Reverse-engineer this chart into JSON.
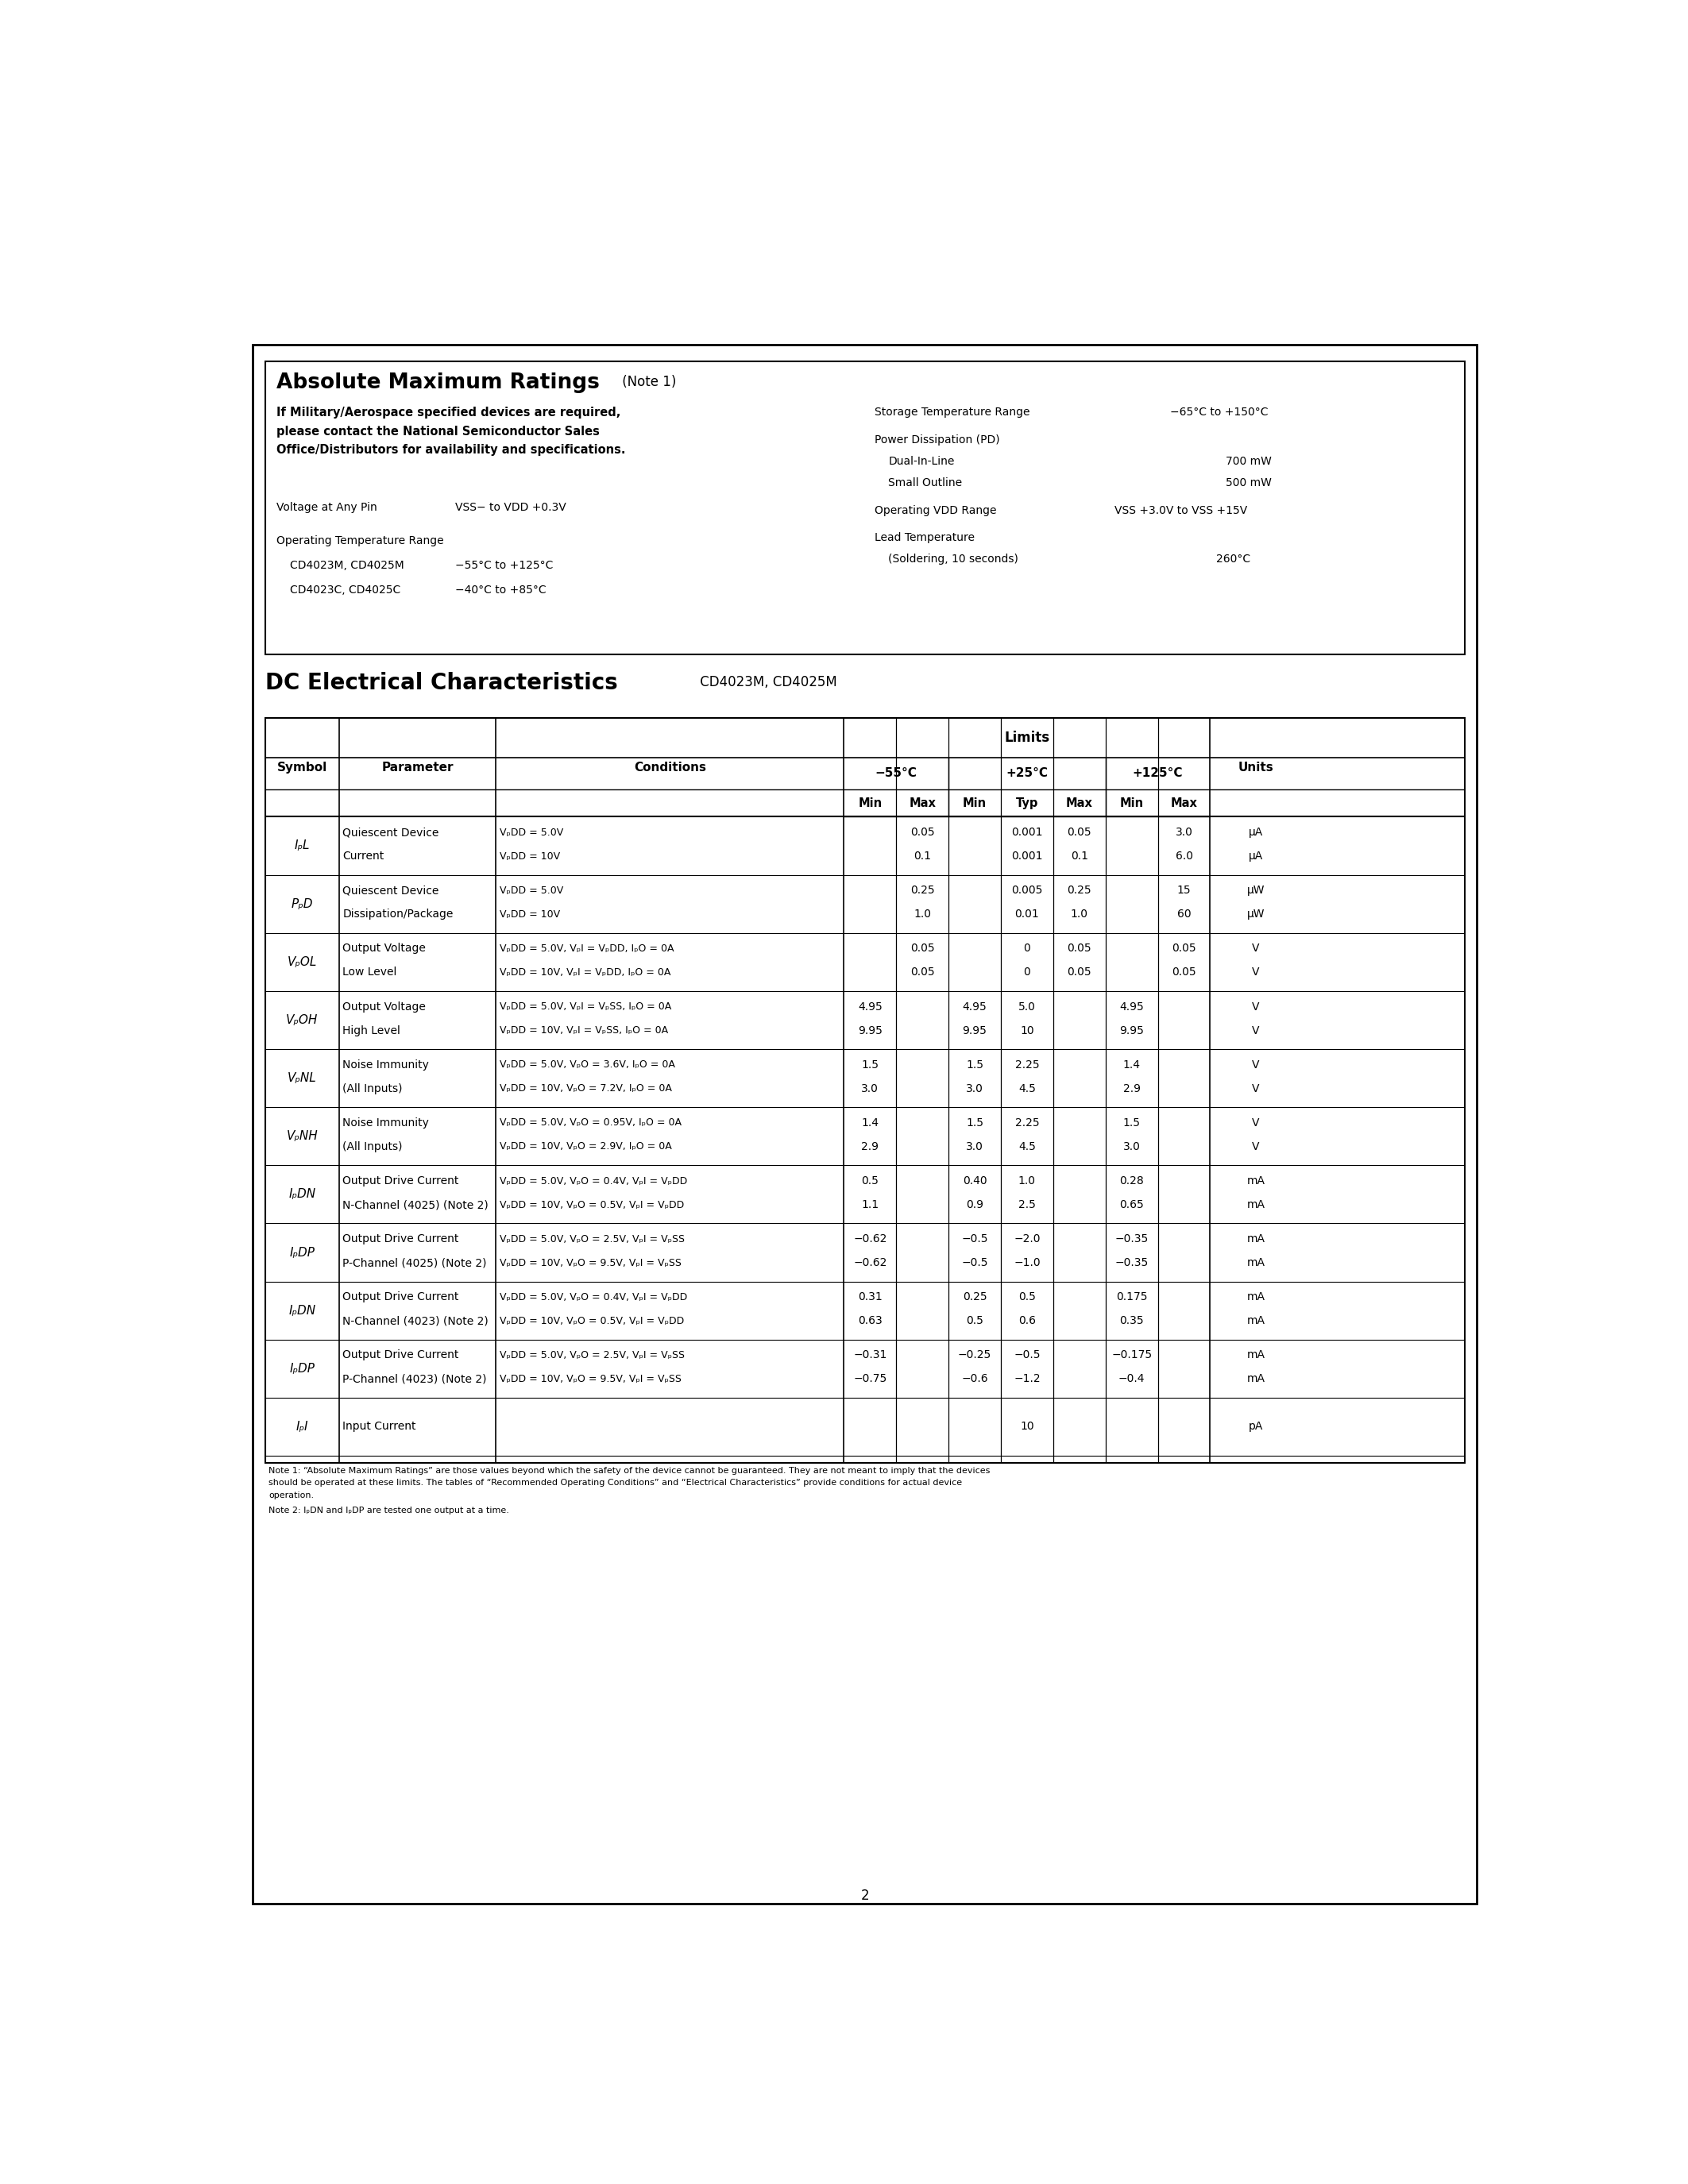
{
  "page_bg": "#ffffff",
  "abs_title_bold": "Absolute Maximum Ratings",
  "abs_title_note": " (Note 1)",
  "abs_subtitle": [
    "If Military/Aerospace specified devices are required,",
    "please contact the National Semiconductor Sales",
    "Office/Distributors for availability and specifications."
  ],
  "abs_left": [
    {
      "label": "Voltage at Any Pin",
      "value": "VₚSS− to VₚDD +0.3V",
      "indent": 0
    },
    {
      "label": "Operating Temperature Range",
      "value": "",
      "indent": 0
    },
    {
      "label": "CD4023M, CD4025M",
      "value": "−55°C to +125°C",
      "indent": 1
    },
    {
      "label": "CD4023C, CD4025C",
      "value": "−40°C to +85°C",
      "indent": 1
    }
  ],
  "abs_right": [
    {
      "label": "Storage Temperature Range",
      "value": "−65°C to +150°C",
      "indent": 0
    },
    {
      "label": "Power Dissipation (PₚD)",
      "value": "",
      "indent": 0
    },
    {
      "label": "Dual-In-Line",
      "value": "700 mW",
      "indent": 1
    },
    {
      "label": "Small Outline",
      "value": "500 mW",
      "indent": 1
    },
    {
      "label": "Operating VₚDD Range",
      "value": "VₚSS +3.0V to VₚSS +15V",
      "indent": 0
    },
    {
      "label": "Lead Temperature",
      "value": "",
      "indent": 0
    },
    {
      "label": "(Soldering, 10 seconds)",
      "value": "260°C",
      "indent": 1
    }
  ],
  "dc_title_bold": "DC Electrical Characteristics",
  "dc_title_normal": " CD4023M, CD4025M",
  "rows": [
    {
      "symbol": "IₚL",
      "param": [
        "Quiescent Device",
        "Current"
      ],
      "cond": [
        "VₚDD = 5.0V",
        "VₚDD = 10V"
      ],
      "m55min": [
        "",
        ""
      ],
      "m55max": [
        "0.05",
        "0.1"
      ],
      "p25min": [
        "",
        ""
      ],
      "p25typ": [
        "0.001",
        "0.001"
      ],
      "p25max": [
        "0.05",
        "0.1"
      ],
      "p125min": [
        "",
        ""
      ],
      "p125max": [
        "3.0",
        "6.0"
      ],
      "units": [
        "μA",
        "μA"
      ]
    },
    {
      "symbol": "PₚD",
      "param": [
        "Quiescent Device",
        "Dissipation/Package"
      ],
      "cond": [
        "VₚDD = 5.0V",
        "VₚDD = 10V"
      ],
      "m55min": [
        "",
        ""
      ],
      "m55max": [
        "0.25",
        "1.0"
      ],
      "p25min": [
        "",
        ""
      ],
      "p25typ": [
        "0.005",
        "0.01"
      ],
      "p25max": [
        "0.25",
        "1.0"
      ],
      "p125min": [
        "",
        ""
      ],
      "p125max": [
        "15",
        "60"
      ],
      "units": [
        "μW",
        "μW"
      ]
    },
    {
      "symbol": "VₚOL",
      "param": [
        "Output Voltage",
        "Low Level"
      ],
      "cond": [
        "VₚDD = 5.0V, VₚI = VₚDD, IₚO = 0A",
        "VₚDD = 10V, VₚI = VₚDD, IₚO = 0A"
      ],
      "m55min": [
        "",
        ""
      ],
      "m55max": [
        "0.05",
        "0.05"
      ],
      "p25min": [
        "",
        ""
      ],
      "p25typ": [
        "0",
        "0"
      ],
      "p25max": [
        "0.05",
        "0.05"
      ],
      "p125min": [
        "",
        ""
      ],
      "p125max": [
        "0.05",
        "0.05"
      ],
      "units": [
        "V",
        "V"
      ]
    },
    {
      "symbol": "VₚOH",
      "param": [
        "Output Voltage",
        "High Level"
      ],
      "cond": [
        "VₚDD = 5.0V, VₚI = VₚSS, IₚO = 0A",
        "VₚDD = 10V, VₚI = VₚSS, IₚO = 0A"
      ],
      "m55min": [
        "4.95",
        "9.95"
      ],
      "m55max": [
        "",
        ""
      ],
      "p25min": [
        "4.95",
        "9.95"
      ],
      "p25typ": [
        "5.0",
        "10"
      ],
      "p25max": [
        "",
        ""
      ],
      "p125min": [
        "4.95",
        "9.95"
      ],
      "p125max": [
        "",
        ""
      ],
      "units": [
        "V",
        "V"
      ]
    },
    {
      "symbol": "VₚNL",
      "param": [
        "Noise Immunity",
        "(All Inputs)"
      ],
      "cond": [
        "VₚDD = 5.0V, VₚO = 3.6V, IₚO = 0A",
        "VₚDD = 10V, VₚO = 7.2V, IₚO = 0A"
      ],
      "m55min": [
        "1.5",
        "3.0"
      ],
      "m55max": [
        "",
        ""
      ],
      "p25min": [
        "1.5",
        "3.0"
      ],
      "p25typ": [
        "2.25",
        "4.5"
      ],
      "p25max": [
        "",
        ""
      ],
      "p125min": [
        "1.4",
        "2.9"
      ],
      "p125max": [
        "",
        ""
      ],
      "units": [
        "V",
        "V"
      ]
    },
    {
      "symbol": "VₚNH",
      "param": [
        "Noise Immunity",
        "(All Inputs)"
      ],
      "cond": [
        "VₚDD = 5.0V, VₚO = 0.95V, IₚO = 0A",
        "VₚDD = 10V, VₚO = 2.9V, IₚO = 0A"
      ],
      "m55min": [
        "1.4",
        "2.9"
      ],
      "m55max": [
        "",
        ""
      ],
      "p25min": [
        "1.5",
        "3.0"
      ],
      "p25typ": [
        "2.25",
        "4.5"
      ],
      "p25max": [
        "",
        ""
      ],
      "p125min": [
        "1.5",
        "3.0"
      ],
      "p125max": [
        "",
        ""
      ],
      "units": [
        "V",
        "V"
      ]
    },
    {
      "symbol": "IₚDN",
      "param": [
        "Output Drive Current",
        "N-Channel (4025) (Note 2)"
      ],
      "cond": [
        "VₚDD = 5.0V, VₚO = 0.4V, VₚI = VₚDD",
        "VₚDD = 10V, VₚO = 0.5V, VₚI = VₚDD"
      ],
      "m55min": [
        "0.5",
        "1.1"
      ],
      "m55max": [
        "",
        ""
      ],
      "p25min": [
        "0.40",
        "0.9"
      ],
      "p25typ": [
        "1.0",
        "2.5"
      ],
      "p25max": [
        "",
        ""
      ],
      "p125min": [
        "0.28",
        "0.65"
      ],
      "p125max": [
        "",
        ""
      ],
      "units": [
        "mA",
        "mA"
      ]
    },
    {
      "symbol": "IₚDP",
      "param": [
        "Output Drive Current",
        "P-Channel (4025) (Note 2)"
      ],
      "cond": [
        "VₚDD = 5.0V, VₚO = 2.5V, VₚI = VₚSS",
        "VₚDD = 10V, VₚO = 9.5V, VₚI = VₚSS"
      ],
      "m55min": [
        "−0.62",
        "−0.62"
      ],
      "m55max": [
        "",
        ""
      ],
      "p25min": [
        "−0.5",
        "−0.5"
      ],
      "p25typ": [
        "−2.0",
        "−1.0"
      ],
      "p25max": [
        "",
        ""
      ],
      "p125min": [
        "−0.35",
        "−0.35"
      ],
      "p125max": [
        "",
        ""
      ],
      "units": [
        "mA",
        "mA"
      ]
    },
    {
      "symbol": "IₚDN",
      "param": [
        "Output Drive Current",
        "N-Channel (4023) (Note 2)"
      ],
      "cond": [
        "VₚDD = 5.0V, VₚO = 0.4V, VₚI = VₚDD",
        "VₚDD = 10V, VₚO = 0.5V, VₚI = VₚDD"
      ],
      "m55min": [
        "0.31",
        "0.63"
      ],
      "m55max": [
        "",
        ""
      ],
      "p25min": [
        "0.25",
        "0.5"
      ],
      "p25typ": [
        "0.5",
        "0.6"
      ],
      "p25max": [
        "",
        ""
      ],
      "p125min": [
        "0.175",
        "0.35"
      ],
      "p125max": [
        "",
        ""
      ],
      "units": [
        "mA",
        "mA"
      ]
    },
    {
      "symbol": "IₚDP",
      "param": [
        "Output Drive Current",
        "P-Channel (4023) (Note 2)"
      ],
      "cond": [
        "VₚDD = 5.0V, VₚO = 2.5V, VₚI = VₚSS",
        "VₚDD = 10V, VₚO = 9.5V, VₚI = VₚSS"
      ],
      "m55min": [
        "−0.31",
        "−0.75"
      ],
      "m55max": [
        "",
        ""
      ],
      "p25min": [
        "−0.25",
        "−0.6"
      ],
      "p25typ": [
        "−0.5",
        "−1.2"
      ],
      "p25max": [
        "",
        ""
      ],
      "p125min": [
        "−0.175",
        "−0.4"
      ],
      "p125max": [
        "",
        ""
      ],
      "units": [
        "mA",
        "mA"
      ]
    },
    {
      "symbol": "IₚI",
      "param": [
        "Input Current"
      ],
      "cond": [
        ""
      ],
      "m55min": [
        ""
      ],
      "m55max": [
        ""
      ],
      "p25min": [
        ""
      ],
      "p25typ": [
        "10"
      ],
      "p25max": [
        ""
      ],
      "p125min": [
        ""
      ],
      "p125max": [
        ""
      ],
      "units": [
        "pA"
      ]
    }
  ],
  "note1": "Note 1: “Absolute Maximum Ratings” are those values beyond which the safety of the device cannot be guaranteed. They are not meant to imply that the devices",
  "note1b": "should be operated at these limits. The tables of “Recommended Operating Conditions” and “Electrical Characteristics” provide conditions for actual device",
  "note1c": "operation.",
  "note2": "Note 2: IₚDN and IₚDP are tested one output at a time.",
  "page_num": "2"
}
